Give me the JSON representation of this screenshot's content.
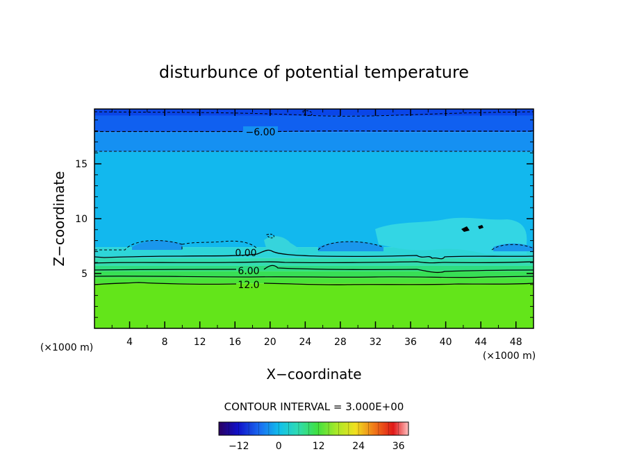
{
  "chart_data": {
    "type": "contour",
    "title": "disturbunce of potential temperature",
    "xlabel": "X−coordinate",
    "ylabel": "Z−coordinate",
    "x_unit_label": "(×1000 m)",
    "x_unit_label_right": "(×1000 m)",
    "xlim": [
      0,
      50
    ],
    "ylim": [
      0,
      20
    ],
    "x_ticks": [
      "4",
      "8",
      "12",
      "16",
      "20",
      "24",
      "28",
      "32",
      "36",
      "40",
      "44",
      "48"
    ],
    "y_ticks": [
      "5",
      "10",
      "15"
    ],
    "contour_labels": [
      "−6.00",
      "0.00",
      "6.00",
      "12.0"
    ],
    "contour_interval_text": "CONTOUR INTERVAL = 3.000E+00",
    "colorbar": {
      "ticks": [
        "−12",
        "0",
        "12",
        "24",
        "36"
      ],
      "range": [
        -18,
        39
      ],
      "step": 3
    },
    "bands": [
      {
        "z_top": 20.0,
        "z_bottom": 19.4,
        "value": -9,
        "color": "#0a46e8"
      },
      {
        "z_top": 19.4,
        "z_bottom": 17.9,
        "value": -7.5,
        "color": "#1060f0"
      },
      {
        "z_top": 17.9,
        "z_bottom": 16.1,
        "value": -4.5,
        "color": "#1590f2"
      },
      {
        "z_top": 16.1,
        "z_bottom": 7.4,
        "value": -1.5,
        "color": "#12b8ee"
      },
      {
        "z_top": 7.4,
        "z_bottom": 6.4,
        "value": 1.5,
        "color": "#2ed5d8"
      },
      {
        "z_top": 6.4,
        "z_bottom": 5.7,
        "value": 4.5,
        "color": "#33dcb0"
      },
      {
        "z_top": 5.7,
        "z_bottom": 5.2,
        "value": 7.5,
        "color": "#2fdc80"
      },
      {
        "z_top": 5.2,
        "z_bottom": 4.6,
        "value": 10.5,
        "color": "#38df55"
      },
      {
        "z_top": 4.6,
        "z_bottom": 4.1,
        "value": 13.5,
        "color": "#4ae238"
      },
      {
        "z_top": 4.1,
        "z_bottom": 0.0,
        "value": 15,
        "color": "#63e51a"
      }
    ]
  }
}
